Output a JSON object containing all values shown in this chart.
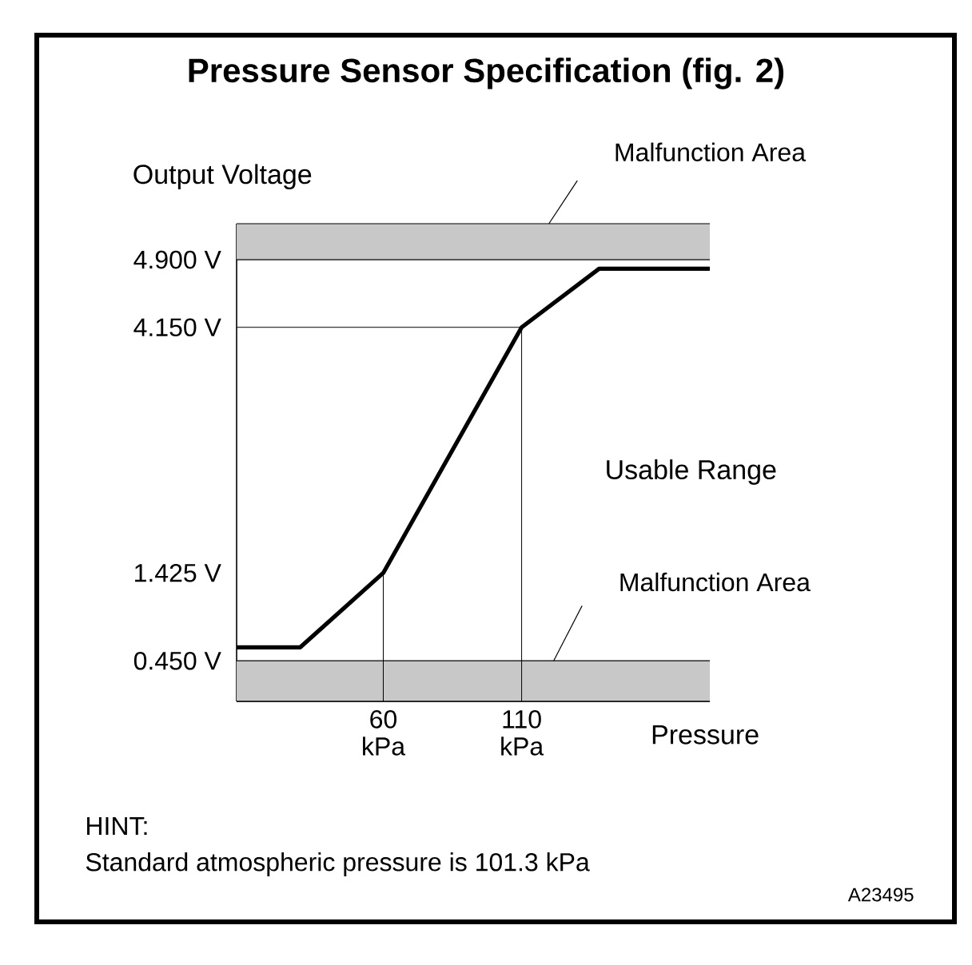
{
  "chart_data": {
    "type": "line",
    "title": "Pressure Sensor Specification (fig. 2)",
    "xlabel": "Pressure",
    "ylabel": "Output Voltage",
    "xlim": [
      7,
      178
    ],
    "ylim": [
      0,
      5.3
    ],
    "xticks": [
      {
        "value": 60,
        "label": "60 kPa"
      },
      {
        "value": 110,
        "label": "110 kPa"
      }
    ],
    "yticks": [
      {
        "value": 0.45,
        "label": "0.450 V"
      },
      {
        "value": 1.425,
        "label": "1.425 V"
      },
      {
        "value": 4.15,
        "label": "4.150 V"
      },
      {
        "value": 4.9,
        "label": "4.900 V"
      }
    ],
    "series": [
      {
        "color": "#000000",
        "x": [
          7,
          30,
          60,
          110,
          138,
          178
        ],
        "values": [
          0.6,
          0.6,
          1.425,
          4.15,
          4.8,
          4.8
        ]
      }
    ],
    "bands": [
      {
        "axis": "y",
        "from": 4.9,
        "to": 5.3,
        "label": "Malfunction Area",
        "color": "#c8c8c8"
      },
      {
        "axis": "y",
        "from": 0,
        "to": 0.45,
        "label": "Malfunction Area",
        "color": "#c8c8c8"
      }
    ],
    "ref_lines": [
      {
        "axis": "x",
        "value": 60
      },
      {
        "axis": "x",
        "value": 110
      },
      {
        "axis": "y",
        "value": 4.15
      }
    ],
    "annotations": [
      "Usable Range",
      "HINT:",
      "Standard atmospheric pressure is 101.3 kPa",
      "A23495"
    ]
  }
}
